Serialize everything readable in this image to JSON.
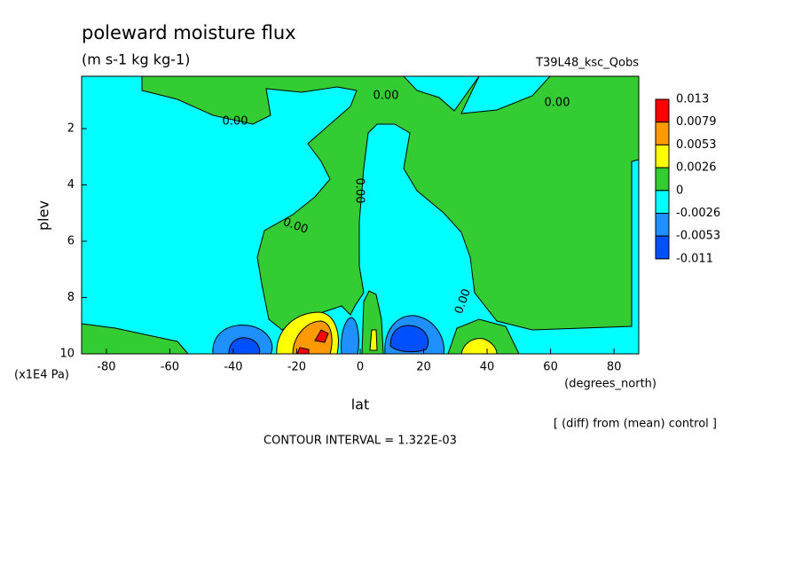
{
  "chart_data": {
    "type": "contour",
    "title": "poleward moisture flux",
    "subtitle": "(m s-1 kg kg-1)",
    "dataset": "T39L48_ksc_Qobs",
    "x_label": "lat",
    "x_units": "(degrees_north)",
    "y_label": "plev",
    "y_units": "(x1E4 Pa)",
    "note": "[ (diff) from (mean) control ]",
    "contour_interval": "CONTOUR INTERVAL = 1.322E-03",
    "contour_label": "0.00",
    "xlim": [
      -87.8,
      87.8
    ],
    "xticks": [
      -80,
      -60,
      -40,
      -20,
      0,
      20,
      40,
      60,
      80
    ],
    "ylim": [
      10,
      0.14
    ],
    "yticks": [
      2,
      4,
      6,
      8,
      10
    ],
    "colorbar": {
      "levels": [
        0.013,
        0.0079,
        0.0053,
        0.0026,
        0,
        -0.0026,
        -0.0053,
        -0.011
      ],
      "colors": [
        "#ff0000",
        "#ff9900",
        "#ffff00",
        "#33cc33",
        "#00ffff",
        "#1e90ff",
        "#0050ff"
      ]
    }
  }
}
